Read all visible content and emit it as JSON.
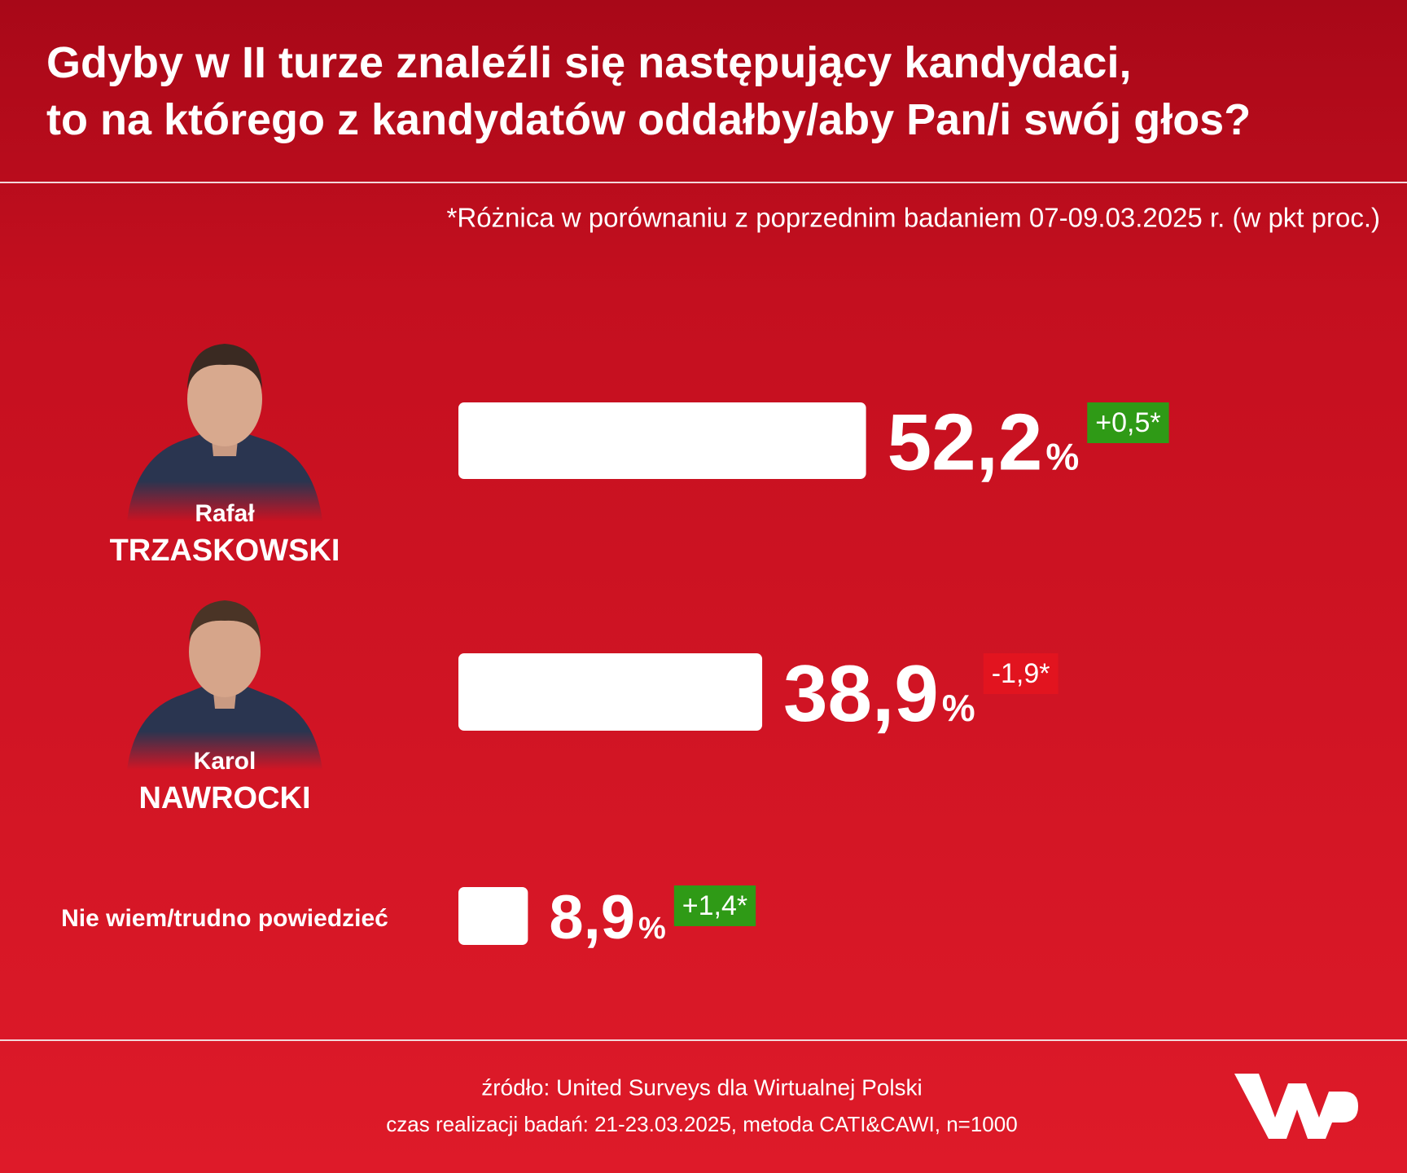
{
  "chart_data": {
    "type": "bar",
    "orientation": "horizontal",
    "title": "Gdyby w II turze znaleźli się następujący kandydaci,\nto na którego z kandydatów oddałby/aby Pan/i swój głos?",
    "note": "*Różnica w porównaniu z poprzednim badaniem 07-09.03.2025 r. (w pkt proc.)",
    "categories": [
      "Rafał\nTRZASKOWSKI",
      "Karol\nNAWROCKI",
      "Nie wiem/trudno powiedzieć"
    ],
    "values": [
      52.2,
      38.9,
      8.9
    ],
    "value_labels": [
      "52,2",
      "38,9",
      "8,9"
    ],
    "unit": "%",
    "color": "#ffffff",
    "changes": [
      0.5,
      -1.9,
      1.4
    ],
    "change_labels": [
      "+0,5*",
      "-1,9*",
      "+1,4*"
    ],
    "change_colors": {
      "up": "#2f9a16",
      "down": "#e2141f"
    },
    "source": "źródło: United Surveys dla Wirtualnej Polski",
    "method": "czas realizacji badań: 21-23.03.2025, metoda CATI&CAWI, n=1000"
  }
}
